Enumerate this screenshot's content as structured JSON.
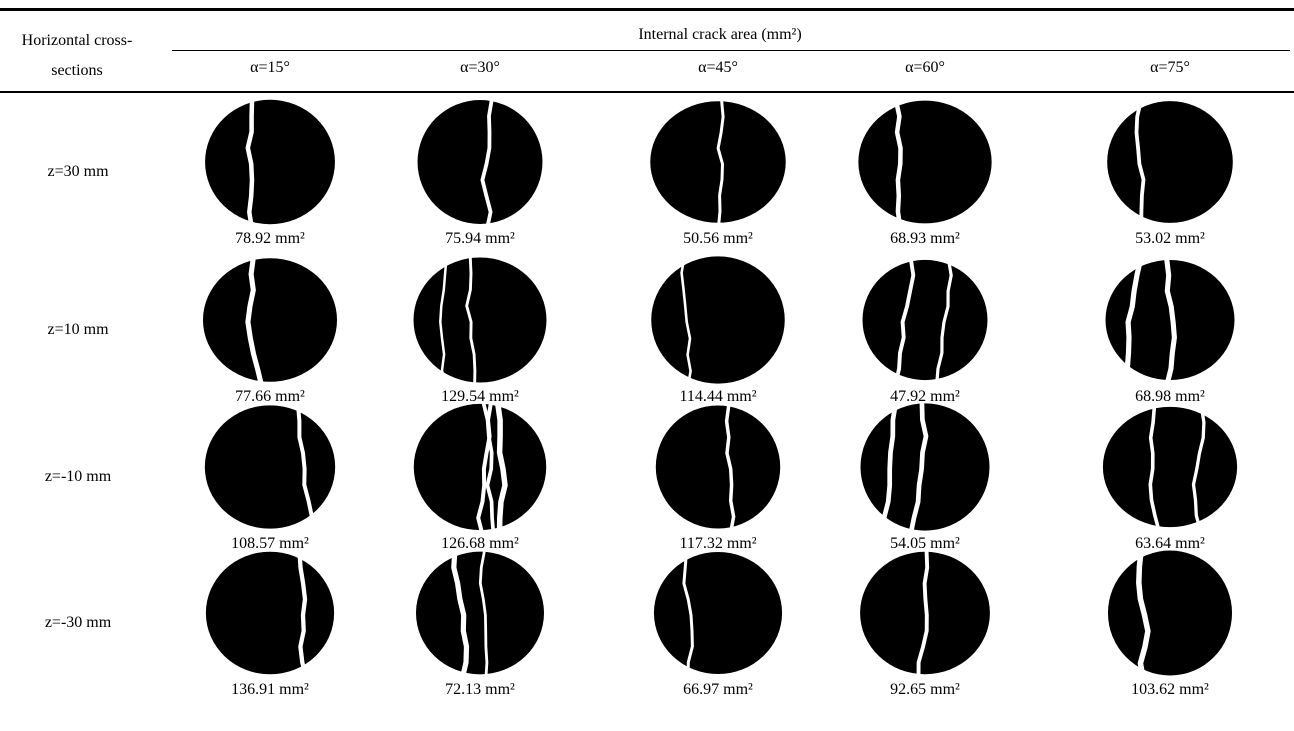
{
  "table": {
    "header": {
      "row_label": "Horizontal cross-sections",
      "group": "Internal crack area (mm²)",
      "columns": [
        "α=15°",
        "α=30°",
        "α=45°",
        "α=60°",
        "α=75°"
      ]
    },
    "rows": [
      {
        "label": "z=30 mm",
        "cells": [
          "78.92 mm²",
          "75.94 mm²",
          "50.56 mm²",
          "68.93 mm²",
          "53.02 mm²"
        ]
      },
      {
        "label": "z=10 mm",
        "cells": [
          "77.66 mm²",
          "129.54 mm²",
          "114.44 mm²",
          "47.92 mm²",
          "68.98 mm²"
        ]
      },
      {
        "label": "z=-10 mm",
        "cells": [
          "108.57 mm²",
          "126.68 mm²",
          "117.32 mm²",
          "54.05 mm²",
          "63.64 mm²"
        ]
      },
      {
        "label": "z=-30 mm",
        "cells": [
          "136.91 mm²",
          "72.13 mm²",
          "66.97 mm²",
          "92.65 mm²",
          "103.62 mm²"
        ]
      }
    ]
  }
}
